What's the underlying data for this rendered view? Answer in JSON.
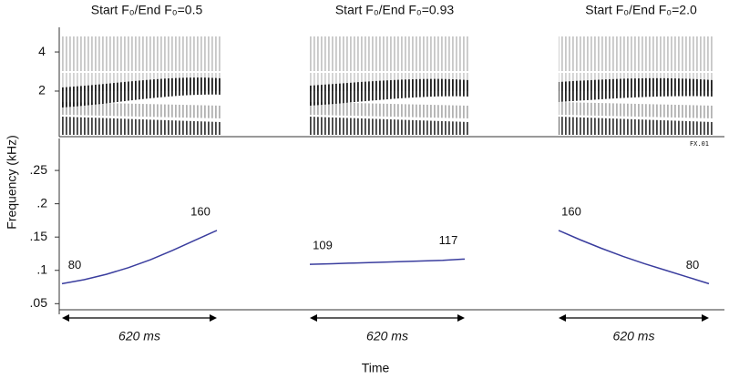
{
  "chart_data": {
    "type": "line",
    "x_label": "Time",
    "y_label": "Frequency (kHz)",
    "annotation": "FX.01",
    "ylim": [
      0.034,
      0.298
    ],
    "yticks": [
      {
        "value": 0.05,
        "label": ".05"
      },
      {
        "value": 0.1,
        "label": ".1"
      },
      {
        "value": 0.15,
        "label": ".15"
      },
      {
        "value": 0.2,
        "label": ".2"
      },
      {
        "value": 0.25,
        "label": ".25"
      }
    ],
    "spectrogram": {
      "ylim": [
        -0.33,
        5.26
      ],
      "yticks": [
        2,
        4
      ]
    },
    "series": [
      {
        "name": "Start F₀/End F₀=0.5",
        "color": "#3a3d9e",
        "values": [
          0.08,
          0.086,
          0.094,
          0.104,
          0.116,
          0.13,
          0.145,
          0.16
        ],
        "value_labels": [
          "80",
          null,
          null,
          null,
          null,
          null,
          null,
          "160"
        ],
        "duration_label": "620 ms"
      },
      {
        "name": "Start F₀/End F₀=0.93",
        "color": "#3a3d9e",
        "values": [
          0.109,
          0.11,
          0.111,
          0.112,
          0.113,
          0.114,
          0.115,
          0.117
        ],
        "value_labels": [
          "109",
          null,
          null,
          null,
          null,
          null,
          null,
          "117"
        ],
        "duration_label": "620 ms"
      },
      {
        "name": "Start F₀/End F₀=2.0",
        "color": "#3a3d9e",
        "values": [
          0.16,
          0.146,
          0.133,
          0.121,
          0.11,
          0.1,
          0.09,
          0.08
        ],
        "value_labels": [
          "160",
          null,
          null,
          null,
          null,
          null,
          null,
          "80"
        ],
        "duration_label": "620 ms"
      }
    ]
  }
}
